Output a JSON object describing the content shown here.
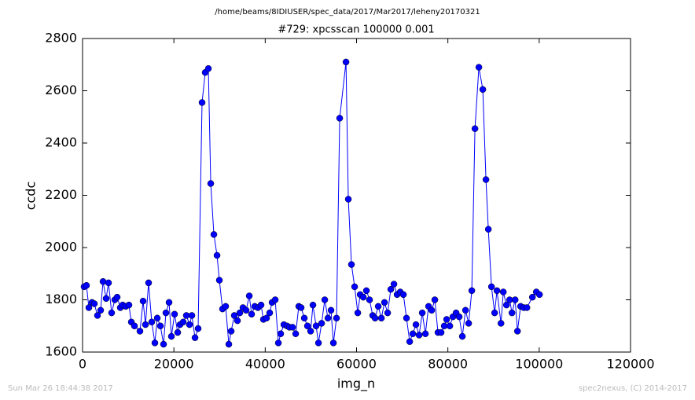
{
  "chart_data": {
    "type": "line",
    "suptitle": "/home/beams/8IDIUSER/spec_data/2017/Mar2017/leheny20170321",
    "title": "#729: xpcsscan 100000 0.001",
    "xlabel": "img_n",
    "ylabel": "ccdc",
    "footer_left": "Sun Mar 26 18:44:38 2017",
    "footer_right": "spec2nexus, (C) 2014-2017",
    "color": "#0000ff",
    "marker": "circle",
    "grid": false,
    "xlim": [
      0,
      120000
    ],
    "xticks": [
      0,
      20000,
      40000,
      60000,
      80000,
      100000,
      120000
    ],
    "ylim": [
      1600,
      2800
    ],
    "yticks": [
      1600,
      1800,
      2000,
      2200,
      2400,
      2600,
      2800
    ],
    "x": [
      340,
      860,
      1380,
      2070,
      2580,
      3270,
      3960,
      4480,
      5170,
      5680,
      6370,
      7060,
      7580,
      8270,
      8780,
      9470,
      10160,
      10680,
      11370,
      12570,
      13260,
      13780,
      14460,
      15150,
      15840,
      16360,
      17050,
      17740,
      18250,
      18940,
      19460,
      20150,
      20840,
      21350,
      22040,
      22730,
      23420,
      23940,
      24630,
      25310,
      26170,
      26860,
      27550,
      28070,
      28760,
      29450,
      29960,
      30650,
      31340,
      32030,
      32550,
      33230,
      33920,
      34440,
      35130,
      35820,
      36510,
      37020,
      37710,
      38400,
      39090,
      39610,
      40290,
      40980,
      41500,
      42190,
      42880,
      43390,
      44080,
      44770,
      45290,
      45980,
      46670,
      47350,
      47870,
      48560,
      49250,
      49940,
      50450,
      51140,
      51660,
      52350,
      53040,
      53730,
      54410,
      54930,
      55620,
      56310,
      57690,
      58200,
      58890,
      59580,
      60270,
      60790,
      61480,
      62160,
      62850,
      63540,
      64060,
      64750,
      65440,
      66120,
      66810,
      67500,
      68190,
      68880,
      69570,
      70260,
      70940,
      71640,
      72320,
      73010,
      73700,
      74390,
      75080,
      75770,
      76460,
      77140,
      77830,
      78520,
      79210,
      79730,
      80420,
      81110,
      81800,
      82480,
      83170,
      83860,
      84550,
      85240,
      85930,
      86790,
      87650,
      88340,
      88860,
      89550,
      90240,
      90750,
      91630,
      92140,
      92830,
      93520,
      94040,
      94730,
      95240,
      95930,
      96620,
      97310,
      98510,
      99370,
      100060
    ],
    "values": [
      1850,
      1855,
      1770,
      1790,
      1785,
      1740,
      1760,
      1870,
      1805,
      1865,
      1750,
      1800,
      1810,
      1770,
      1780,
      1775,
      1780,
      1715,
      1700,
      1680,
      1795,
      1705,
      1865,
      1715,
      1635,
      1730,
      1700,
      1630,
      1750,
      1790,
      1660,
      1745,
      1675,
      1705,
      1715,
      1740,
      1705,
      1740,
      1655,
      1690,
      2555,
      2670,
      2685,
      2245,
      2050,
      1970,
      1875,
      1765,
      1775,
      1630,
      1680,
      1740,
      1720,
      1750,
      1770,
      1760,
      1815,
      1745,
      1775,
      1770,
      1780,
      1725,
      1730,
      1750,
      1790,
      1800,
      1635,
      1670,
      1705,
      1700,
      1695,
      1695,
      1670,
      1775,
      1770,
      1730,
      1700,
      1680,
      1780,
      1700,
      1635,
      1710,
      1800,
      1730,
      1760,
      1635,
      1730,
      2495,
      2710,
      2185,
      1935,
      1850,
      1750,
      1820,
      1810,
      1835,
      1800,
      1740,
      1730,
      1775,
      1730,
      1790,
      1750,
      1840,
      1860,
      1820,
      1830,
      1820,
      1730,
      1640,
      1670,
      1705,
      1665,
      1750,
      1670,
      1775,
      1760,
      1800,
      1675,
      1675,
      1700,
      1725,
      1700,
      1735,
      1750,
      1735,
      1660,
      1760,
      1710,
      1835,
      2455,
      2690,
      2605,
      2260,
      2070,
      1850,
      1750,
      1835,
      1710,
      1830,
      1780,
      1800,
      1750,
      1800,
      1680,
      1775,
      1770,
      1770,
      1810,
      1830,
      1820
    ]
  }
}
